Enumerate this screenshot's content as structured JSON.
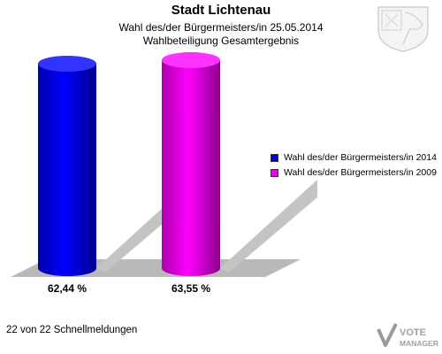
{
  "header": {
    "title": "Stadt Lichtenau",
    "subtitle_line1": "Wahl des/der Bürgermeisters/in  25.05.2014",
    "subtitle_line2": "Wahlbeteiligung Gesamtergebnis"
  },
  "footer": {
    "report_status": "22 von 22 Schnellmeldungen"
  },
  "branding": {
    "logo_line1": "VOTE",
    "logo_line2": "MANAGER",
    "coat_of_arms_icon": "coat-of-arms-icon"
  },
  "chart_data": {
    "type": "bar",
    "title": "Stadt Lichtenau",
    "categories": [
      "Wahl des/der Bürgermeisters/in  2014",
      "Wahl des/der Bürgermeisters/in 2009"
    ],
    "values": [
      62.44,
      63.55
    ],
    "value_labels": [
      "62,44 %",
      "63,55 %"
    ],
    "colors": [
      "#0000ee",
      "#ee00ee"
    ],
    "ylim": [
      0,
      70
    ],
    "legend": {
      "placement": "right",
      "entries": [
        "Wahl des/der Bürgermeisters/in  2014",
        "Wahl des/der Bürgermeisters/in 2009"
      ]
    },
    "grid": false
  }
}
